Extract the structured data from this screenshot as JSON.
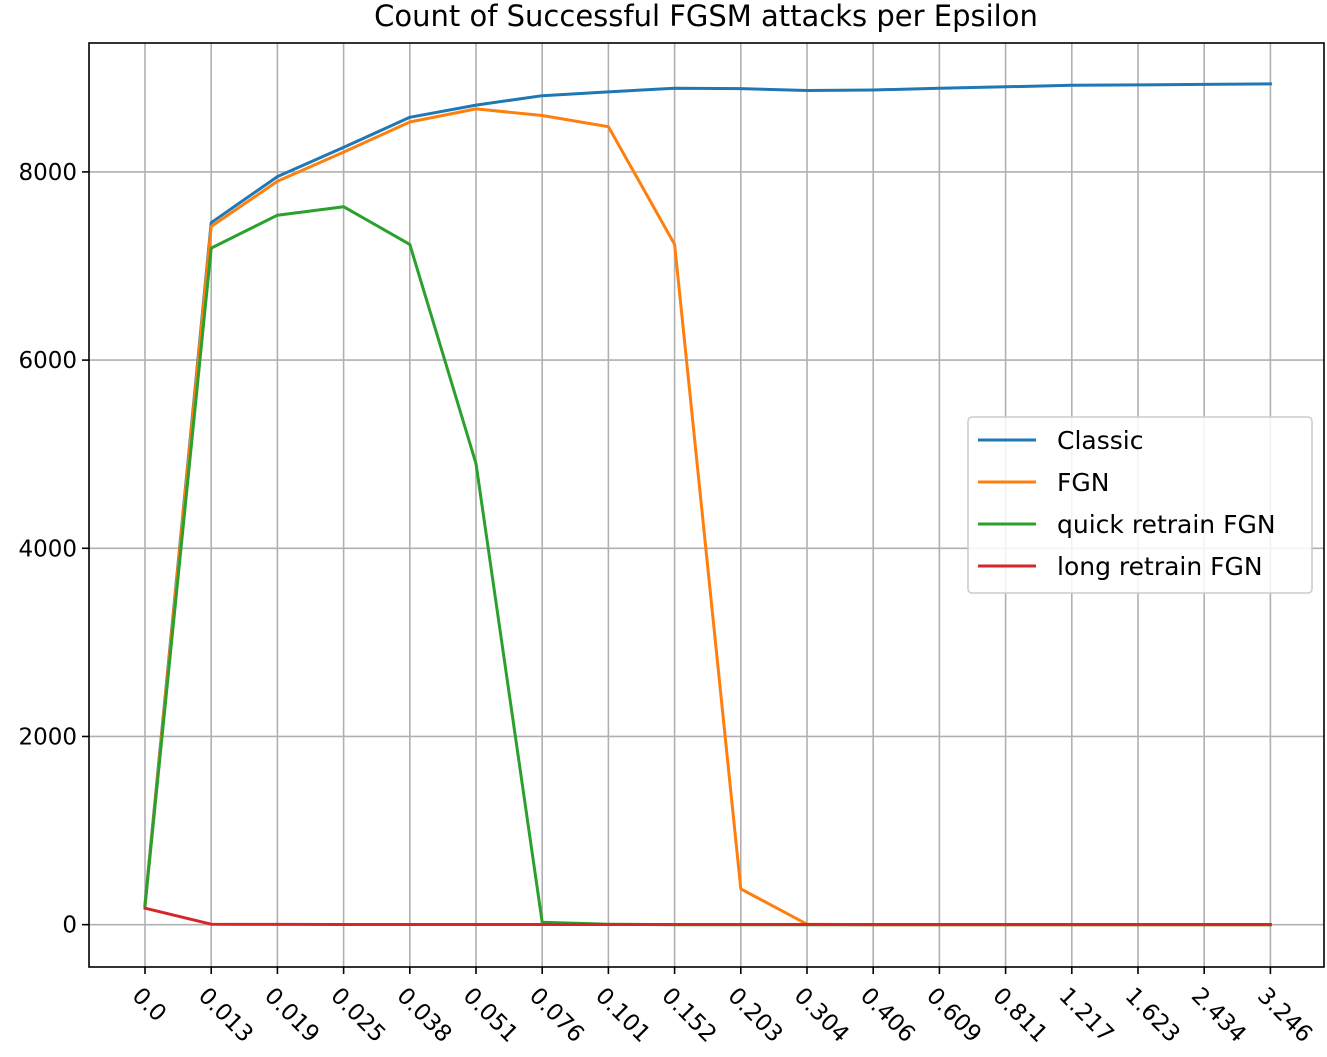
{
  "chart_data": {
    "type": "line",
    "title": "Count of Successful FGSM attacks per Epsilon",
    "xlabel": "",
    "ylabel": "",
    "categories": [
      "0.0",
      "0.013",
      "0.019",
      "0.025",
      "0.038",
      "0.051",
      "0.076",
      "0.101",
      "0.152",
      "0.203",
      "0.304",
      "0.406",
      "0.609",
      "0.811",
      "1.217",
      "1.623",
      "2.434",
      "3.246"
    ],
    "y_ticks": [
      0,
      2000,
      4000,
      6000,
      8000
    ],
    "y_tick_labels": [
      "0",
      "2000",
      "4000",
      "6000",
      "8000"
    ],
    "ylim": [
      -450,
      9370
    ],
    "grid": true,
    "legend_position": "center-right",
    "series": [
      {
        "name": "Classic",
        "color": "#1f77b4",
        "values": [
          220,
          7460,
          7950,
          8260,
          8580,
          8710,
          8810,
          8850,
          8890,
          8885,
          8865,
          8870,
          8890,
          8905,
          8920,
          8925,
          8930,
          8935
        ]
      },
      {
        "name": "FGN",
        "color": "#ff7f0e",
        "values": [
          200,
          7420,
          7900,
          8210,
          8530,
          8670,
          8600,
          8480,
          7230,
          380,
          5,
          0,
          0,
          0,
          0,
          0,
          0,
          0
        ]
      },
      {
        "name": "quick retrain FGN",
        "color": "#2ca02c",
        "values": [
          200,
          7190,
          7540,
          7630,
          7230,
          4900,
          25,
          5,
          0,
          0,
          0,
          0,
          0,
          0,
          0,
          0,
          0,
          0
        ]
      },
      {
        "name": "long retrain FGN",
        "color": "#d62728",
        "values": [
          175,
          5,
          3,
          2,
          2,
          2,
          2,
          2,
          2,
          2,
          2,
          2,
          2,
          2,
          2,
          2,
          2,
          2
        ]
      }
    ]
  }
}
